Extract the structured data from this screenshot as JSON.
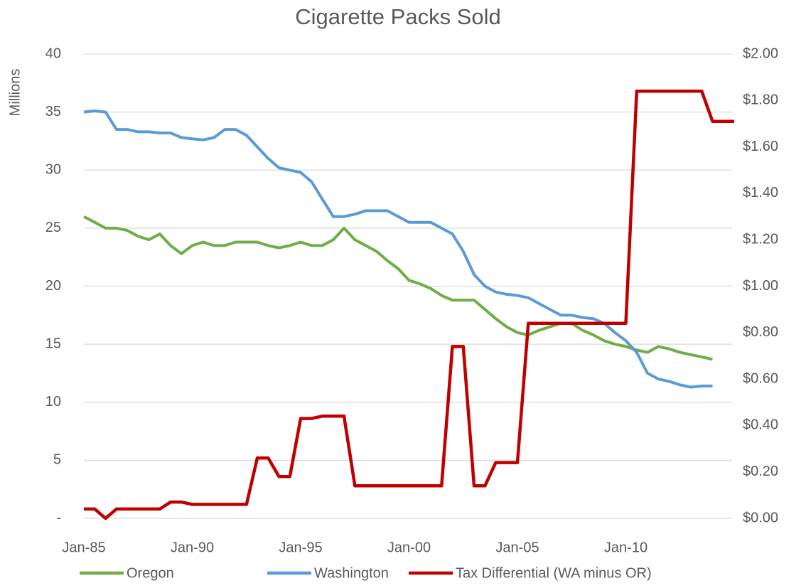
{
  "chart_data": {
    "type": "line",
    "title": "Cigarette Packs Sold",
    "y_label": "Millions",
    "x": [
      "Jan-85",
      "Jul-85",
      "Jan-86",
      "Jul-86",
      "Jan-87",
      "Jul-87",
      "Jan-88",
      "Jul-88",
      "Jan-89",
      "Jul-89",
      "Jan-90",
      "Jul-90",
      "Jan-91",
      "Jul-91",
      "Jan-92",
      "Jul-92",
      "Jan-93",
      "Jul-93",
      "Jan-94",
      "Jul-94",
      "Jan-95",
      "Jul-95",
      "Jan-96",
      "Jul-96",
      "Jan-97",
      "Jul-97",
      "Jan-98",
      "Jul-98",
      "Jan-99",
      "Jul-99",
      "Jan-00",
      "Jul-00",
      "Jan-01",
      "Jul-01",
      "Jan-02",
      "Jul-02",
      "Jan-03",
      "Jul-03",
      "Jan-04",
      "Jul-04",
      "Jan-05",
      "Jul-05",
      "Jan-06",
      "Jul-06",
      "Jan-07",
      "Jul-07",
      "Jan-08",
      "Jul-08",
      "Jan-09",
      "Jul-09",
      "Jan-10",
      "Jul-10",
      "Jan-11",
      "Jul-11",
      "Jan-12",
      "Jul-12",
      "Jan-13",
      "Jul-13",
      "Jan-14",
      "Jul-14",
      "Jan-15"
    ],
    "xticks": [
      "Jan-85",
      "Jan-90",
      "Jan-95",
      "Jan-00",
      "Jan-05",
      "Jan-10"
    ],
    "series": [
      {
        "name": "Oregon",
        "color": "#70ad47",
        "values": [
          26,
          25.5,
          25,
          25,
          24.8,
          24.3,
          24,
          24.5,
          23.5,
          22.8,
          23.5,
          23.8,
          23.5,
          23.5,
          23.8,
          23.8,
          23.8,
          23.5,
          23.3,
          23.5,
          23.8,
          23.5,
          23.5,
          24,
          25,
          24,
          23.5,
          23,
          22.2,
          21.5,
          20.5,
          20.2,
          19.8,
          19.2,
          18.8,
          18.8,
          18.8,
          18,
          17.2,
          16.5,
          16,
          15.8,
          16.2,
          16.5,
          16.8,
          16.8,
          16.2,
          15.8,
          15.3,
          15,
          14.8,
          14.5,
          14.3,
          14.8,
          14.6,
          14.3,
          14.1,
          13.9,
          13.7,
          null,
          null
        ]
      },
      {
        "name": "Washington",
        "color": "#5b9bd5",
        "values": [
          35,
          35.1,
          35,
          33.5,
          33.5,
          33.3,
          33.3,
          33.2,
          33.2,
          32.8,
          32.7,
          32.6,
          32.8,
          33.5,
          33.5,
          33,
          32,
          31,
          30.2,
          30,
          29.8,
          29,
          27.5,
          26,
          26,
          26.2,
          26.5,
          26.5,
          26.5,
          26,
          25.5,
          25.5,
          25.5,
          25,
          24.5,
          23,
          21,
          20,
          19.5,
          19.3,
          19.2,
          19,
          18.5,
          18,
          17.5,
          17.5,
          17.3,
          17.2,
          16.8,
          16,
          15.3,
          14.3,
          12.5,
          12,
          11.8,
          11.5,
          11.3,
          11.4,
          11.4,
          null,
          null
        ]
      },
      {
        "name": "Tax Differential (WA minus OR)",
        "color": "#c00000",
        "axis": "y2",
        "values": [
          0.04,
          0.04,
          0,
          0.04,
          0.04,
          0.04,
          0.04,
          0.04,
          0.07,
          0.07,
          0.06,
          0.06,
          0.06,
          0.06,
          0.06,
          0.06,
          0.26,
          0.26,
          0.18,
          0.18,
          0.43,
          0.43,
          0.44,
          0.44,
          0.44,
          0.14,
          0.14,
          0.14,
          0.14,
          0.14,
          0.14,
          0.14,
          0.14,
          0.14,
          0.74,
          0.74,
          0.14,
          0.14,
          0.24,
          0.24,
          0.24,
          0.84,
          0.84,
          0.84,
          0.84,
          0.84,
          0.84,
          0.84,
          0.84,
          0.84,
          0.84,
          1.84,
          1.84,
          1.84,
          1.84,
          1.84,
          1.84,
          1.84,
          1.71,
          1.71,
          1.71
        ]
      }
    ],
    "ylim": [
      0,
      40
    ],
    "yticks": [
      {
        "value": 0,
        "label": "-"
      },
      5,
      10,
      15,
      20,
      25,
      30,
      35,
      40
    ],
    "y2lim": [
      0,
      2
    ],
    "y2ticks": [
      {
        "value": 0,
        "label": "$0.00"
      },
      {
        "value": 0.2,
        "label": "$0.20"
      },
      {
        "value": 0.4,
        "label": "$0.40"
      },
      {
        "value": 0.6,
        "label": "$0.60"
      },
      {
        "value": 0.8,
        "label": "$0.80"
      },
      {
        "value": 1,
        "label": "$1.00"
      },
      {
        "value": 1.2,
        "label": "$1.20"
      },
      {
        "value": 1.4,
        "label": "$1.40"
      },
      {
        "value": 1.6,
        "label": "$1.60"
      },
      {
        "value": 1.8,
        "label": "$1.80"
      },
      {
        "value": 2,
        "label": "$2.00"
      }
    ],
    "grid": true,
    "legend": "bottom"
  }
}
